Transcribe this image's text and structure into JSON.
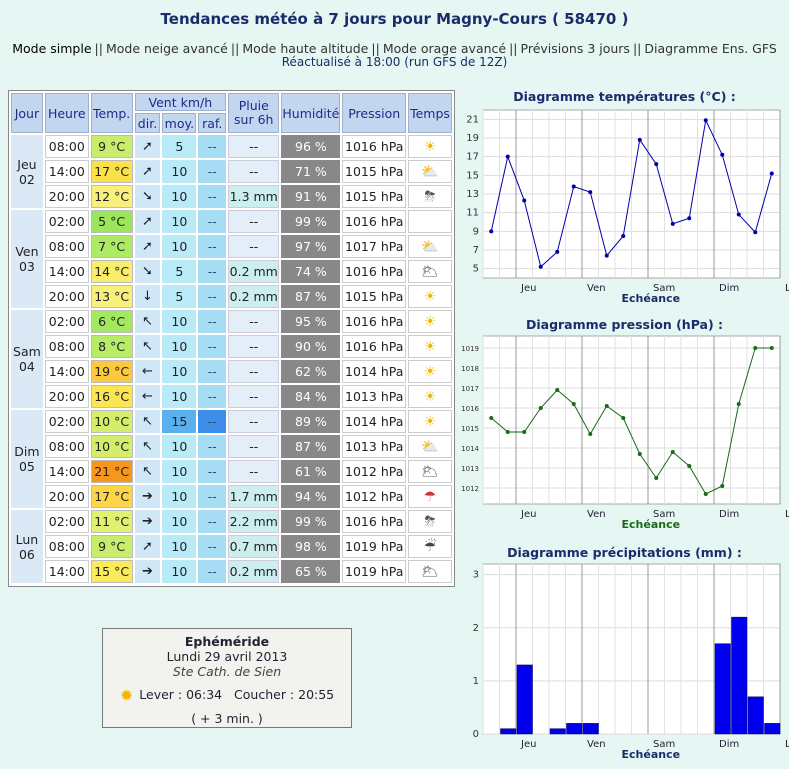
{
  "header": {
    "title": "Tendances météo à 7 jours pour Magny-Cours ( 58470 )",
    "nav": [
      "Mode simple",
      "Mode neige avancé",
      "Mode haute altitude",
      "Mode orage avancé",
      "Prévisions 3 jours",
      "Diagramme Ens. GFS"
    ],
    "nav_current": "Mode simple",
    "updated": "Réactualisé à 18:00 (run GFS de 12Z)"
  },
  "table": {
    "headers": {
      "jour": "Jour",
      "heure": "Heure",
      "temp": "Temp.",
      "vent": "Vent km/h",
      "dir": "dir.",
      "moy": "moy.",
      "raf": "raf.",
      "pluie": "Pluie sur 6h",
      "humidite": "Humidité",
      "pression": "Pression",
      "temps": "Temps"
    },
    "days": [
      {
        "day": "Jeu",
        "num": "02",
        "rows": [
          {
            "hour": "08:00",
            "temp": "9 °C",
            "tcolor": "#c8ec6c",
            "arrow": "➚",
            "moy": "5",
            "raf": "--",
            "rain": "--",
            "hum": "96 %",
            "pres": "1016 hPa",
            "wx": "sun-icon"
          },
          {
            "hour": "14:00",
            "temp": "17 °C",
            "tcolor": "#fce04a",
            "arrow": "➚",
            "moy": "10",
            "raf": "--",
            "rain": "--",
            "hum": "71 %",
            "pres": "1015 hPa",
            "wx": "sun-cloud-icon"
          },
          {
            "hour": "20:00",
            "temp": "12 °C",
            "tcolor": "#f8f07a",
            "arrow": "➘",
            "moy": "10",
            "raf": "--",
            "rain": "1.3 mm",
            "hum": "91 %",
            "pres": "1015 hPa",
            "wx": "storm-icon"
          }
        ]
      },
      {
        "day": "Ven",
        "num": "03",
        "rows": [
          {
            "hour": "02:00",
            "temp": "5 °C",
            "tcolor": "#9ae75c",
            "arrow": "➚",
            "moy": "10",
            "raf": "--",
            "rain": "--",
            "hum": "99 %",
            "pres": "1016 hPa",
            "wx": "none"
          },
          {
            "hour": "08:00",
            "temp": "7 °C",
            "tcolor": "#aeeb64",
            "arrow": "➚",
            "moy": "10",
            "raf": "--",
            "rain": "--",
            "hum": "97 %",
            "pres": "1017 hPa",
            "wx": "sun-cloud-icon"
          },
          {
            "hour": "14:00",
            "temp": "14 °C",
            "tcolor": "#f8ee6a",
            "arrow": "➘",
            "moy": "5",
            "raf": "--",
            "rain": "0.2 mm",
            "hum": "74 %",
            "pres": "1016 hPa",
            "wx": "cloud-sun-icon"
          },
          {
            "hour": "20:00",
            "temp": "13 °C",
            "tcolor": "#f8f07a",
            "arrow": "↓",
            "moy": "5",
            "raf": "--",
            "rain": "0.2 mm",
            "hum": "87 %",
            "pres": "1015 hPa",
            "wx": "sun-icon"
          }
        ]
      },
      {
        "day": "Sam",
        "num": "04",
        "rows": [
          {
            "hour": "02:00",
            "temp": "6 °C",
            "tcolor": "#a2e95e",
            "arrow": "↖",
            "moy": "10",
            "raf": "--",
            "rain": "--",
            "hum": "95 %",
            "pres": "1016 hPa",
            "wx": "sun-icon"
          },
          {
            "hour": "08:00",
            "temp": "8 °C",
            "tcolor": "#b8ec66",
            "arrow": "↖",
            "moy": "10",
            "raf": "--",
            "rain": "--",
            "hum": "90 %",
            "pres": "1016 hPa",
            "wx": "sun-icon"
          },
          {
            "hour": "14:00",
            "temp": "19 °C",
            "tcolor": "#fcc83e",
            "arrow": "←",
            "moy": "10",
            "raf": "--",
            "rain": "--",
            "hum": "62 %",
            "pres": "1014 hPa",
            "wx": "sun-icon"
          },
          {
            "hour": "20:00",
            "temp": "16 °C",
            "tcolor": "#fbe650",
            "arrow": "←",
            "moy": "10",
            "raf": "--",
            "rain": "--",
            "hum": "84 %",
            "pres": "1013 hPa",
            "wx": "sun-icon"
          }
        ]
      },
      {
        "day": "Dim",
        "num": "05",
        "rows": [
          {
            "hour": "02:00",
            "temp": "10 °C",
            "tcolor": "#d4ee6c",
            "arrow": "↖",
            "moy": "15",
            "raf": "--",
            "rain": "--",
            "hum": "89 %",
            "pres": "1014 hPa",
            "wx": "sun-icon"
          },
          {
            "hour": "08:00",
            "temp": "10 °C",
            "tcolor": "#d4ee6c",
            "arrow": "↖",
            "moy": "10",
            "raf": "--",
            "rain": "--",
            "hum": "87 %",
            "pres": "1013 hPa",
            "wx": "sun-cloud-icon"
          },
          {
            "hour": "14:00",
            "temp": "21 °C",
            "tcolor": "#f7961c",
            "arrow": "↖",
            "moy": "10",
            "raf": "--",
            "rain": "--",
            "hum": "61 %",
            "pres": "1012 hPa",
            "wx": "cloud-sun-icon"
          },
          {
            "hour": "20:00",
            "temp": "17 °C",
            "tcolor": "#fcd648",
            "arrow": "➔",
            "moy": "10",
            "raf": "--",
            "rain": "1.7 mm",
            "hum": "94 %",
            "pres": "1012 hPa",
            "wx": "rain-warning-icon"
          }
        ]
      },
      {
        "day": "Lun",
        "num": "06",
        "rows": [
          {
            "hour": "02:00",
            "temp": "11 °C",
            "tcolor": "#e0f070",
            "arrow": "➔",
            "moy": "10",
            "raf": "--",
            "rain": "2.2 mm",
            "hum": "99 %",
            "pres": "1016 hPa",
            "wx": "storm-rain-icon"
          },
          {
            "hour": "08:00",
            "temp": "9 °C",
            "tcolor": "#c8ec6c",
            "arrow": "➚",
            "moy": "10",
            "raf": "--",
            "rain": "0.7 mm",
            "hum": "98 %",
            "pres": "1019 hPa",
            "wx": "heavy-rain-icon"
          },
          {
            "hour": "14:00",
            "temp": "15 °C",
            "tcolor": "#fbea5a",
            "arrow": "➔",
            "moy": "10",
            "raf": "--",
            "rain": "0.2 mm",
            "hum": "65 %",
            "pres": "1019 hPa",
            "wx": "cloud-sun-icon"
          }
        ]
      }
    ]
  },
  "ephemeride": {
    "title": "Ephéméride",
    "date": "Lundi 29 avril 2013",
    "saint": "Ste Cath. de Sien",
    "sunrise": "Lever : 06:34",
    "sunset": "Coucher : 20:55",
    "diff": "( + 3 min. )"
  },
  "chart_data": [
    {
      "type": "line",
      "title": "Diagramme températures (°C) :",
      "xlabel": "Echéance",
      "day_labels": [
        "Jeu",
        "Ven",
        "Sam",
        "Dim",
        "Lun"
      ],
      "y_ticks": [
        5,
        7,
        9,
        11,
        13,
        15,
        17,
        19,
        21
      ],
      "ylim": [
        4,
        22
      ],
      "values": [
        9,
        17,
        12.3,
        5.2,
        6.8,
        13.8,
        13.2,
        6.4,
        8.5,
        18.8,
        16.2,
        9.8,
        10.4,
        20.9,
        17.2,
        10.8,
        8.9,
        15.2
      ],
      "color": "#0000aa"
    },
    {
      "type": "line",
      "title": "Diagramme pression (hPa) :",
      "xlabel": "Echéance",
      "day_labels": [
        "Jeu",
        "Ven",
        "Sam",
        "Dim",
        "Lun"
      ],
      "y_ticks": [
        1012,
        1013,
        1014,
        1015,
        1016,
        1017,
        1018,
        1019
      ],
      "ylim": [
        1011.2,
        1019.6
      ],
      "values": [
        1015.5,
        1014.8,
        1014.8,
        1016.0,
        1016.9,
        1016.2,
        1014.7,
        1016.1,
        1015.5,
        1013.7,
        1012.5,
        1013.8,
        1013.1,
        1011.7,
        1012.1,
        1016.2,
        1019.0,
        1019.0
      ],
      "color": "#1a6a1a"
    },
    {
      "type": "bar",
      "title": "Diagramme précipitations (mm) :",
      "xlabel": "Echéance",
      "day_labels": [
        "Jeu",
        "Ven",
        "Sam",
        "Dim",
        "Lun"
      ],
      "y_ticks": [
        0,
        1,
        2,
        3
      ],
      "ylim": [
        0,
        3.2
      ],
      "values": [
        0,
        0.1,
        1.3,
        0,
        0.1,
        0.2,
        0.2,
        0,
        0,
        0,
        0,
        0,
        0,
        0,
        1.7,
        2.2,
        0.7,
        0.2
      ],
      "color": "#0000ee"
    }
  ]
}
